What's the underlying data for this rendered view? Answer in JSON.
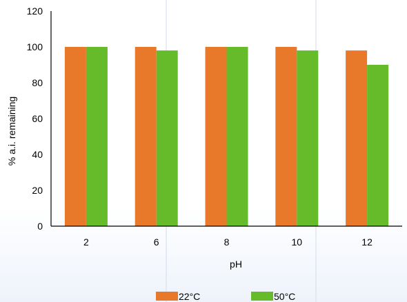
{
  "chart_data": {
    "type": "bar",
    "categories": [
      "2",
      "6",
      "8",
      "10",
      "12"
    ],
    "series": [
      {
        "name": "22°C",
        "color": "#E8792B",
        "values": [
          100,
          100,
          100,
          100,
          98
        ]
      },
      {
        "name": "50°C",
        "color": "#66BB2A",
        "values": [
          100,
          98,
          100,
          98,
          90
        ]
      }
    ],
    "xlabel": "pH",
    "ylabel": "% a.i. remaining",
    "ylim": [
      0,
      120
    ],
    "yticks": [
      0,
      20,
      40,
      60,
      80,
      100,
      120
    ],
    "legend_position": "bottom"
  }
}
